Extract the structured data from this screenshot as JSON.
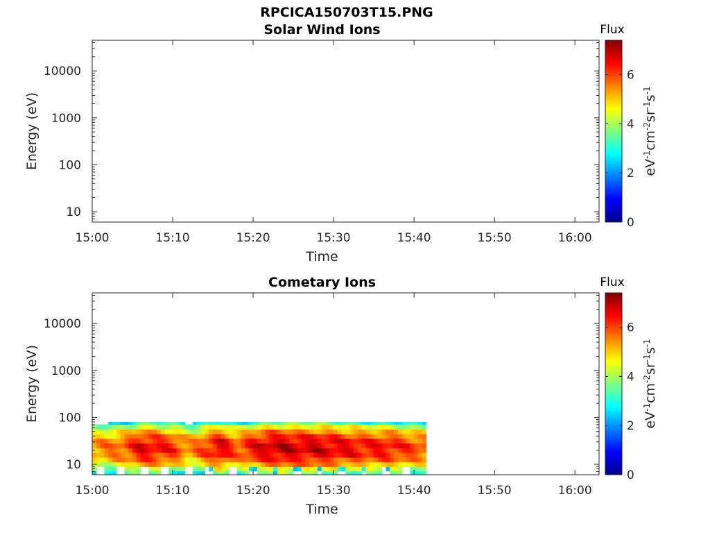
{
  "figure": {
    "title": "RPCICA150703T15.PNG"
  },
  "colormap": [
    "#00008f",
    "#0000ff",
    "#0080ff",
    "#00ffff",
    "#80ff80",
    "#ffff00",
    "#ff8000",
    "#ff0000",
    "#800000"
  ],
  "chart_data": [
    {
      "type": "heatmap",
      "title": "Solar Wind Ions",
      "xlabel": "Time",
      "ylabel": "Energy (eV)",
      "x_ticks": [
        "15:00",
        "15:10",
        "15:20",
        "15:30",
        "15:40",
        "15:50",
        "16:00"
      ],
      "x_range_minutes": [
        0,
        63
      ],
      "y_scale": "log",
      "y_ticks": [
        {
          "value": 10,
          "label": "10"
        },
        {
          "value": 100,
          "label": "100"
        },
        {
          "value": 1000,
          "label": "1000"
        },
        {
          "value": 10000,
          "label": "10000"
        }
      ],
      "ylim": [
        6,
        45000
      ],
      "colorbar": {
        "title": "Flux",
        "label": "eV^-1 cm^-2 sr^-1 s^-1",
        "ticks": [
          "0",
          "2",
          "4",
          "6"
        ],
        "range": [
          0,
          7.4
        ]
      },
      "data_present": false
    },
    {
      "type": "heatmap",
      "title": "Cometary Ions",
      "xlabel": "Time",
      "ylabel": "Energy (eV)",
      "x_ticks": [
        "15:00",
        "15:10",
        "15:20",
        "15:30",
        "15:40",
        "15:50",
        "16:00"
      ],
      "x_range_minutes": [
        0,
        63
      ],
      "y_scale": "log",
      "y_ticks": [
        {
          "value": 10,
          "label": "10"
        },
        {
          "value": 100,
          "label": "100"
        },
        {
          "value": 1000,
          "label": "1000"
        },
        {
          "value": 10000,
          "label": "10000"
        }
      ],
      "ylim": [
        6,
        45000
      ],
      "colorbar": {
        "title": "Flux",
        "label": "eV^-1 cm^-2 sr^-1 s^-1",
        "ticks": [
          "0",
          "2",
          "4",
          "6"
        ],
        "range": [
          0,
          7.4
        ]
      },
      "data_present": true,
      "data_extent": {
        "time_minutes": [
          0,
          41.5
        ],
        "energy_eV": [
          6,
          80
        ]
      },
      "energy_bins_eV": [
        6.5,
        8,
        10,
        12.5,
        16,
        20,
        25,
        32,
        40,
        50,
        63,
        80
      ],
      "flux_profile_by_energy": [
        3.2,
        4.1,
        5.0,
        5.6,
        6.0,
        6.2,
        6.2,
        6.0,
        5.6,
        5.0,
        4.2,
        3.0
      ],
      "time_modulation": [
        {
          "t_minutes": 0,
          "flux": 5.4
        },
        {
          "t_minutes": 2,
          "flux": 5.6
        },
        {
          "t_minutes": 4,
          "flux": 5.8
        },
        {
          "t_minutes": 6,
          "flux": 6.6
        },
        {
          "t_minutes": 8,
          "flux": 6.4
        },
        {
          "t_minutes": 10,
          "flux": 6.2
        },
        {
          "t_minutes": 12,
          "flux": 5.4
        },
        {
          "t_minutes": 14,
          "flux": 6.0
        },
        {
          "t_minutes": 16,
          "flux": 6.7
        },
        {
          "t_minutes": 18,
          "flux": 5.8
        },
        {
          "t_minutes": 20,
          "flux": 6.5
        },
        {
          "t_minutes": 22,
          "flux": 6.8
        },
        {
          "t_minutes": 24,
          "flux": 6.9
        },
        {
          "t_minutes": 26,
          "flux": 6.7
        },
        {
          "t_minutes": 28,
          "flux": 6.8
        },
        {
          "t_minutes": 30,
          "flux": 6.6
        },
        {
          "t_minutes": 32,
          "flux": 6.5
        },
        {
          "t_minutes": 34,
          "flux": 6.3
        },
        {
          "t_minutes": 36,
          "flux": 6.4
        },
        {
          "t_minutes": 38,
          "flux": 6.2
        },
        {
          "t_minutes": 40,
          "flux": 6.0
        },
        {
          "t_minutes": 41.5,
          "flux": 5.8
        }
      ]
    }
  ]
}
